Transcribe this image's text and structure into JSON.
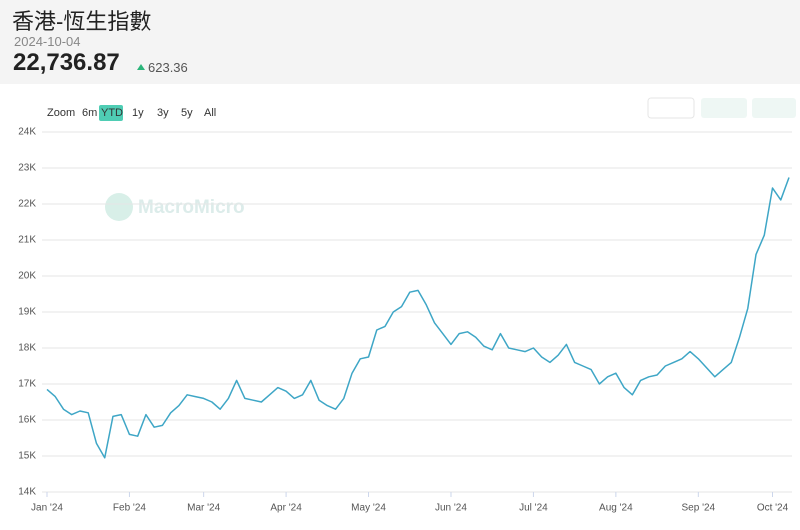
{
  "header": {
    "title": "香港-恆生指數",
    "date": "2024-10-04",
    "value": "22,736.87",
    "change": "623.36"
  },
  "zoom": {
    "label": "Zoom",
    "options": [
      "6m",
      "YTD",
      "1y",
      "3y",
      "5y",
      "All"
    ],
    "active": "YTD"
  },
  "chart_data": {
    "type": "line",
    "watermark": "MacroMicro",
    "categories": [
      "Jan '24",
      null,
      null,
      null,
      null,
      null,
      null,
      null,
      null,
      null,
      "Feb '24",
      null,
      null,
      null,
      null,
      null,
      null,
      null,
      null,
      "Mar '24",
      null,
      null,
      null,
      null,
      null,
      null,
      null,
      null,
      null,
      "Apr '24",
      null,
      null,
      null,
      null,
      null,
      null,
      null,
      null,
      null,
      "May '24",
      null,
      null,
      null,
      null,
      null,
      null,
      null,
      null,
      null,
      "Jun '24",
      null,
      null,
      null,
      null,
      null,
      null,
      null,
      null,
      null,
      "Jul '24",
      null,
      null,
      null,
      null,
      null,
      null,
      null,
      null,
      null,
      "Aug '24",
      null,
      null,
      null,
      null,
      null,
      null,
      null,
      null,
      null,
      "Sep '24",
      null,
      null,
      null,
      null,
      null,
      null,
      null,
      null,
      "Oct '24",
      null,
      null
    ],
    "series": [
      {
        "name": "恆生指數",
        "color": "#3ea6c6",
        "values": [
          16850,
          16650,
          16300,
          16150,
          16250,
          16200,
          15350,
          14950,
          16100,
          16150,
          15600,
          15550,
          16150,
          15800,
          15850,
          16200,
          16400,
          16700,
          16650,
          16600,
          16500,
          16300,
          16600,
          17100,
          16600,
          16550,
          16500,
          16700,
          16900,
          16800,
          16600,
          16700,
          17100,
          16550,
          16400,
          16300,
          16600,
          17300,
          17700,
          17750,
          18500,
          18600,
          19000,
          19150,
          19550,
          19600,
          19200,
          18700,
          18400,
          18100,
          18400,
          18450,
          18300,
          18050,
          17950,
          18400,
          18000,
          17950,
          17900,
          18000,
          17750,
          17600,
          17800,
          18100,
          17600,
          17500,
          17400,
          17000,
          17200,
          17300,
          16900,
          16700,
          17100,
          17200,
          17250,
          17500,
          17600,
          17700,
          17900,
          17700,
          17450,
          17200,
          17400,
          17600,
          18300,
          19100,
          20600,
          21133,
          22443,
          22113,
          22736.87
        ]
      }
    ],
    "ylim": [
      14000,
      24000
    ],
    "yticks": [
      {
        "value": 14000,
        "label": "14K"
      },
      {
        "value": 15000,
        "label": "15K"
      },
      {
        "value": 16000,
        "label": "16K"
      },
      {
        "value": 17000,
        "label": "17K"
      },
      {
        "value": 18000,
        "label": "18K"
      },
      {
        "value": 19000,
        "label": "19K"
      },
      {
        "value": 20000,
        "label": "20K"
      },
      {
        "value": 21000,
        "label": "21K"
      },
      {
        "value": 22000,
        "label": "22K"
      },
      {
        "value": 23000,
        "label": "23K"
      },
      {
        "value": 24000,
        "label": "24K"
      }
    ],
    "grid": true
  }
}
